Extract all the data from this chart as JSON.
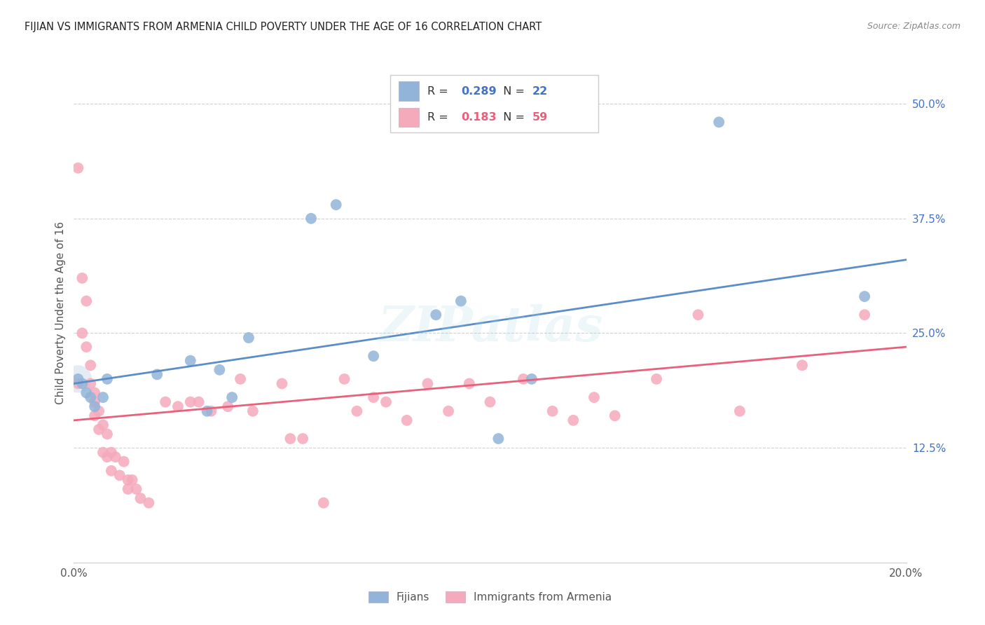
{
  "title": "FIJIAN VS IMMIGRANTS FROM ARMENIA CHILD POVERTY UNDER THE AGE OF 16 CORRELATION CHART",
  "source": "Source: ZipAtlas.com",
  "ylabel": "Child Poverty Under the Age of 16",
  "ytick_labels": [
    "12.5%",
    "25.0%",
    "37.5%",
    "50.0%"
  ],
  "ytick_values": [
    0.125,
    0.25,
    0.375,
    0.5
  ],
  "xmin": 0.0,
  "xmax": 0.2,
  "ymin": 0.0,
  "ymax": 0.545,
  "legend_label1": "Fijians",
  "legend_label2": "Immigrants from Armenia",
  "blue_color": "#92B4D8",
  "pink_color": "#F5AABB",
  "blue_line_color": "#5B8DC8",
  "pink_line_color": "#E8607A",
  "watermark": "ZIPatlas",
  "blue_line_x0": 0.0,
  "blue_line_y0": 0.195,
  "blue_line_x1": 0.2,
  "blue_line_y1": 0.33,
  "pink_line_x0": 0.0,
  "pink_line_y0": 0.155,
  "pink_line_x1": 0.2,
  "pink_line_y1": 0.235,
  "fijian_x": [
    0.001,
    0.002,
    0.003,
    0.004,
    0.005,
    0.007,
    0.008,
    0.02,
    0.028,
    0.032,
    0.035,
    0.038,
    0.042,
    0.057,
    0.063,
    0.072,
    0.087,
    0.093,
    0.102,
    0.11,
    0.155,
    0.19
  ],
  "fijian_y": [
    0.2,
    0.195,
    0.185,
    0.18,
    0.17,
    0.18,
    0.2,
    0.205,
    0.22,
    0.165,
    0.21,
    0.18,
    0.245,
    0.375,
    0.39,
    0.225,
    0.27,
    0.285,
    0.135,
    0.2,
    0.48,
    0.29
  ],
  "armenia_x": [
    0.001,
    0.001,
    0.002,
    0.002,
    0.003,
    0.003,
    0.004,
    0.004,
    0.005,
    0.005,
    0.005,
    0.006,
    0.006,
    0.007,
    0.007,
    0.008,
    0.008,
    0.009,
    0.009,
    0.01,
    0.011,
    0.012,
    0.013,
    0.013,
    0.014,
    0.015,
    0.016,
    0.018,
    0.022,
    0.025,
    0.028,
    0.03,
    0.033,
    0.037,
    0.04,
    0.043,
    0.05,
    0.052,
    0.055,
    0.06,
    0.065,
    0.068,
    0.072,
    0.075,
    0.08,
    0.085,
    0.09,
    0.095,
    0.1,
    0.108,
    0.115,
    0.12,
    0.125,
    0.13,
    0.14,
    0.15,
    0.16,
    0.175,
    0.19
  ],
  "armenia_y": [
    0.43,
    0.195,
    0.31,
    0.25,
    0.285,
    0.235,
    0.215,
    0.195,
    0.185,
    0.175,
    0.16,
    0.165,
    0.145,
    0.15,
    0.12,
    0.14,
    0.115,
    0.12,
    0.1,
    0.115,
    0.095,
    0.11,
    0.09,
    0.08,
    0.09,
    0.08,
    0.07,
    0.065,
    0.175,
    0.17,
    0.175,
    0.175,
    0.165,
    0.17,
    0.2,
    0.165,
    0.195,
    0.135,
    0.135,
    0.065,
    0.2,
    0.165,
    0.18,
    0.175,
    0.155,
    0.195,
    0.165,
    0.195,
    0.175,
    0.2,
    0.165,
    0.155,
    0.18,
    0.16,
    0.2,
    0.27,
    0.165,
    0.215,
    0.27
  ]
}
